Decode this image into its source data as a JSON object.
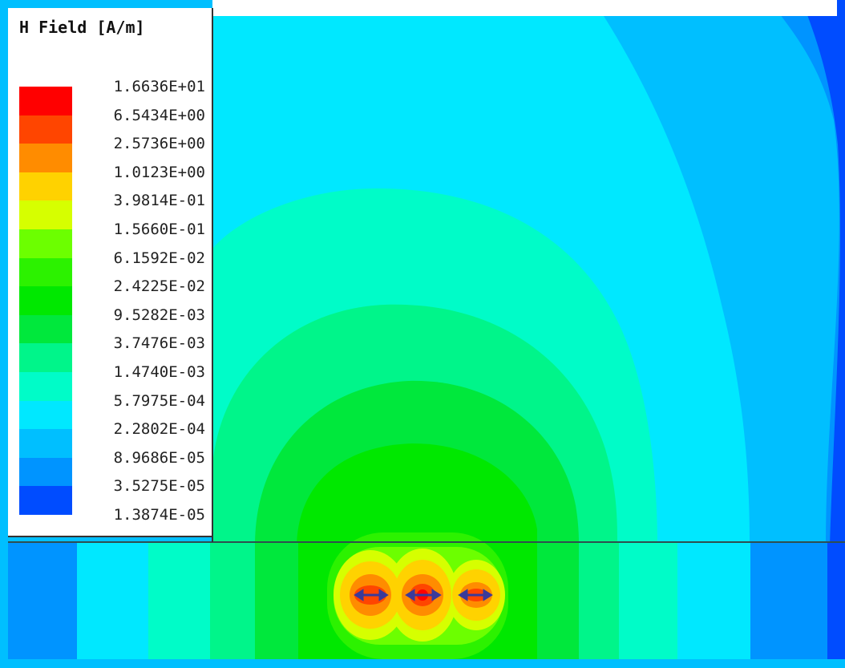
{
  "legend": {
    "title": "H Field [A/m]",
    "levels": [
      {
        "label": "1.6636E+01",
        "color": "#ff0000"
      },
      {
        "label": "6.5434E+00",
        "color": "#ff4500"
      },
      {
        "label": "2.5736E+00",
        "color": "#ff8c00"
      },
      {
        "label": "1.0123E+00",
        "color": "#ffd200"
      },
      {
        "label": "3.9814E-01",
        "color": "#d6ff00"
      },
      {
        "label": "1.5660E-01",
        "color": "#6cff00"
      },
      {
        "label": "6.1592E-02",
        "color": "#2cf200"
      },
      {
        "label": "2.4225E-02",
        "color": "#00e800"
      },
      {
        "label": "9.5282E-03",
        "color": "#00e83c"
      },
      {
        "label": "3.7476E-03",
        "color": "#00f58a"
      },
      {
        "label": "1.4740E-03",
        "color": "#00fcc8"
      },
      {
        "label": "5.7975E-04",
        "color": "#00e8ff"
      },
      {
        "label": "2.2802E-04",
        "color": "#00bfff"
      },
      {
        "label": "8.9686E-05",
        "color": "#0094ff"
      },
      {
        "label": "3.5275E-05",
        "color": "#004cff"
      },
      {
        "label": "1.3874E-05",
        "color": "#0000ff"
      }
    ]
  },
  "colors": {
    "background_top": "#00bfff",
    "interface_line": "#2f4f4f",
    "conductor": "#3a3a9a"
  },
  "icons": [
    "conductor-arrow-icon"
  ]
}
